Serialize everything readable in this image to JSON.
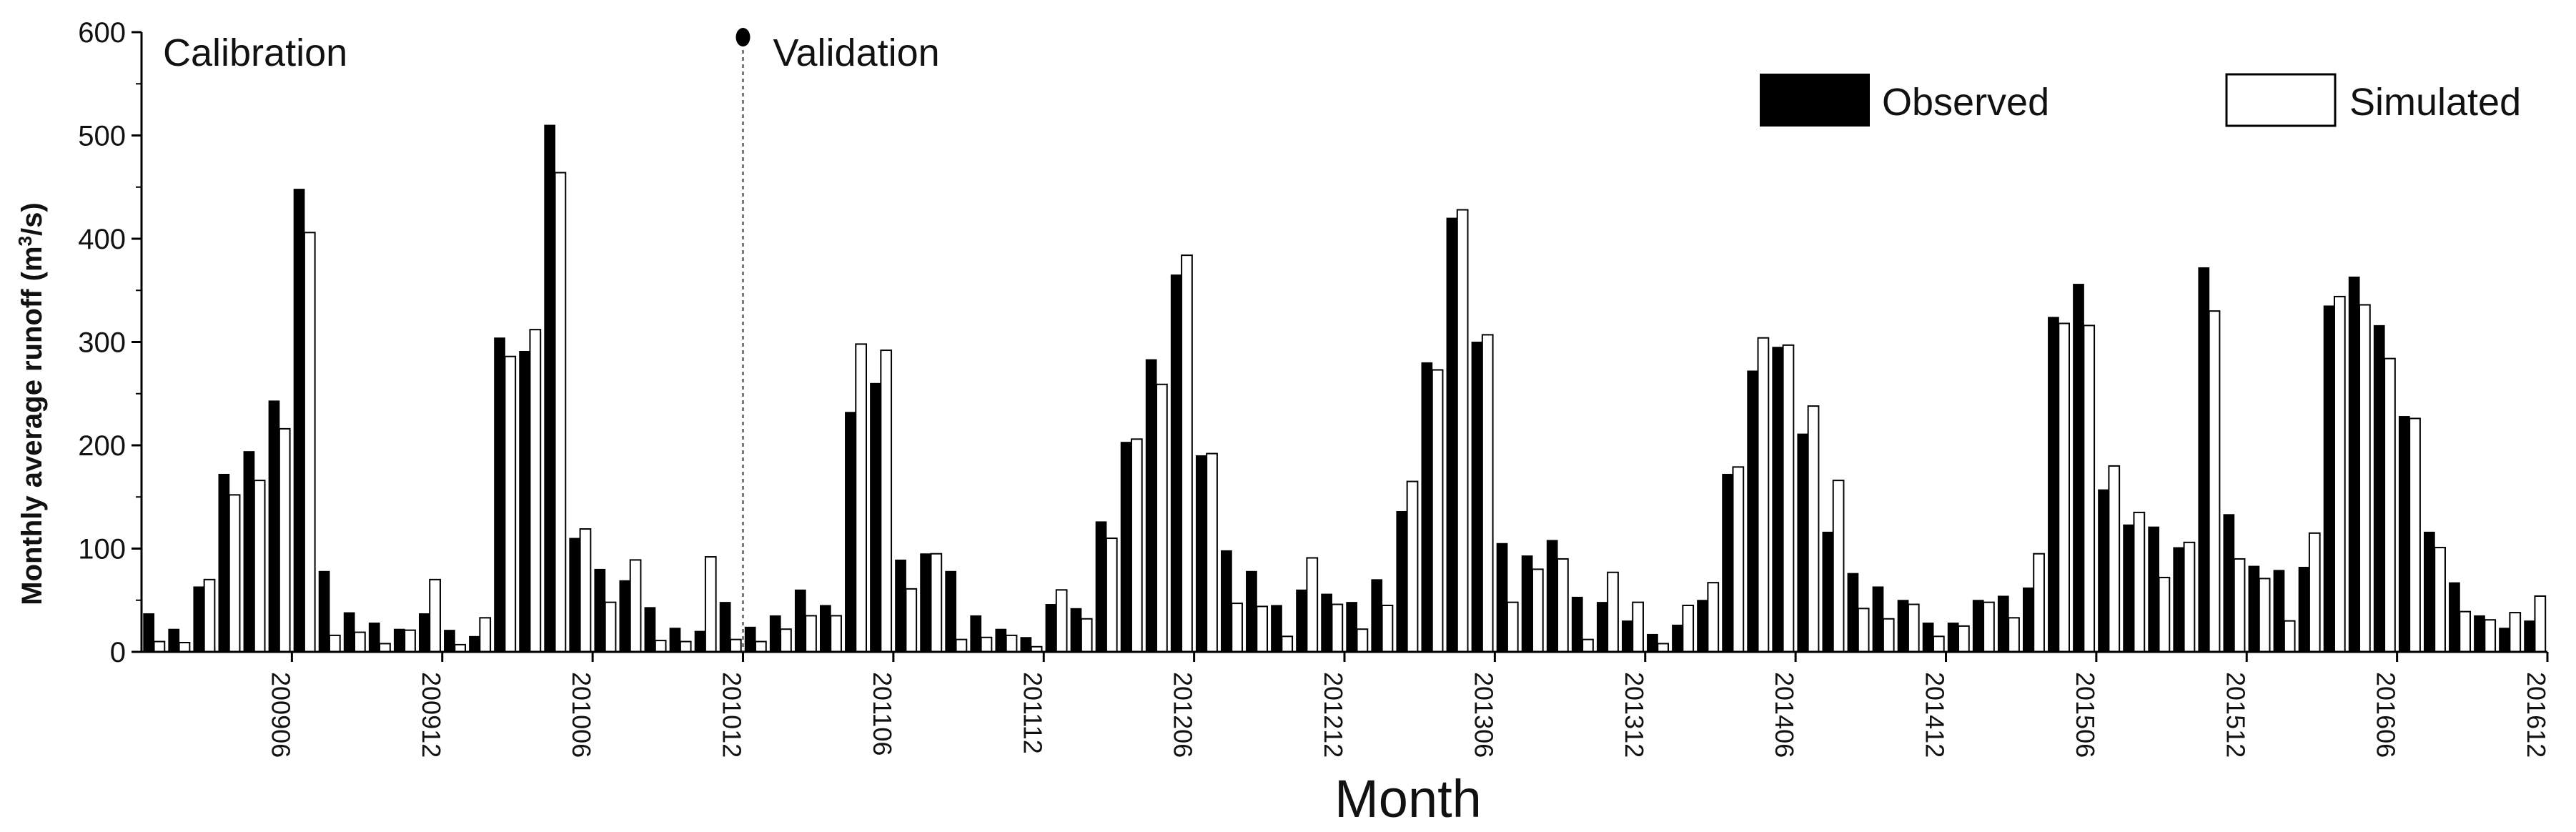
{
  "chart_data": {
    "type": "bar",
    "xlabel": "Month",
    "ylabel_main": "Monthly average runoff (m",
    "ylabel_sup": "3",
    "ylabel_tail": "/s)",
    "ylim": [
      0,
      600
    ],
    "y_ticks": [
      0,
      100,
      200,
      300,
      400,
      500,
      600
    ],
    "grid": false,
    "legend_position": "top-right",
    "annotations": {
      "calibration": "Calibration",
      "validation": "Validation"
    },
    "divider_after_month": "201012",
    "months": [
      "200901",
      "200902",
      "200903",
      "200904",
      "200905",
      "200906",
      "200907",
      "200908",
      "200909",
      "200910",
      "200911",
      "200912",
      "201001",
      "201002",
      "201003",
      "201004",
      "201005",
      "201006",
      "201007",
      "201008",
      "201009",
      "201010",
      "201011",
      "201012",
      "201101",
      "201102",
      "201103",
      "201104",
      "201105",
      "201106",
      "201107",
      "201108",
      "201109",
      "201110",
      "201111",
      "201112",
      "201201",
      "201202",
      "201203",
      "201204",
      "201205",
      "201206",
      "201207",
      "201208",
      "201209",
      "201210",
      "201211",
      "201212",
      "201301",
      "201302",
      "201303",
      "201304",
      "201305",
      "201306",
      "201307",
      "201308",
      "201309",
      "201310",
      "201311",
      "201312",
      "201401",
      "201402",
      "201403",
      "201404",
      "201405",
      "201406",
      "201407",
      "201408",
      "201409",
      "201410",
      "201411",
      "201412",
      "201501",
      "201502",
      "201503",
      "201504",
      "201505",
      "201506",
      "201507",
      "201508",
      "201509",
      "201510",
      "201511",
      "201512",
      "201601",
      "201602",
      "201603",
      "201604",
      "201605",
      "201606",
      "201607",
      "201608",
      "201609",
      "201610",
      "201611",
      "201612"
    ],
    "tick_labels": [
      "200906",
      "200912",
      "201006",
      "201012",
      "201106",
      "201112",
      "201206",
      "201212",
      "201306",
      "201312",
      "201406",
      "201412",
      "201506",
      "201512",
      "201606",
      "201612"
    ],
    "series": [
      {
        "name": "Observed",
        "color": "#000000",
        "values": [
          37,
          22,
          63,
          172,
          194,
          243,
          448,
          78,
          38,
          28,
          22,
          37,
          21,
          15,
          304,
          291,
          510,
          110,
          80,
          69,
          43,
          23,
          20,
          48,
          24,
          35,
          60,
          45,
          232,
          260,
          89,
          95,
          78,
          35,
          22,
          14,
          46,
          42,
          126,
          203,
          283,
          365,
          190,
          98,
          78,
          45,
          60,
          56,
          48,
          70,
          136,
          280,
          420,
          300,
          105,
          93,
          108,
          53,
          48,
          30,
          17,
          26,
          50,
          172,
          272,
          295,
          211,
          116,
          76,
          63,
          50,
          28,
          28,
          50,
          54,
          62,
          324,
          356,
          157,
          123,
          121,
          101,
          372,
          133,
          83,
          79,
          82,
          335,
          363,
          316,
          228,
          116,
          67,
          35,
          23,
          30
        ]
      },
      {
        "name": "Simulated",
        "color": "#ffffff",
        "values": [
          10,
          9,
          70,
          152,
          166,
          216,
          406,
          16,
          19,
          8,
          21,
          70,
          7,
          33,
          286,
          312,
          464,
          119,
          48,
          89,
          11,
          10,
          92,
          12,
          10,
          22,
          35,
          35,
          298,
          292,
          61,
          95,
          12,
          14,
          16,
          5,
          60,
          32,
          110,
          206,
          259,
          384,
          192,
          47,
          44,
          15,
          91,
          46,
          22,
          45,
          165,
          273,
          428,
          307,
          48,
          80,
          90,
          12,
          77,
          48,
          8,
          45,
          67,
          179,
          304,
          297,
          238,
          166,
          42,
          32,
          46,
          15,
          25,
          48,
          33,
          95,
          318,
          316,
          180,
          135,
          72,
          106,
          330,
          90,
          71,
          30,
          115,
          344,
          336,
          284,
          226,
          101,
          39,
          31,
          38,
          54
        ]
      }
    ]
  }
}
